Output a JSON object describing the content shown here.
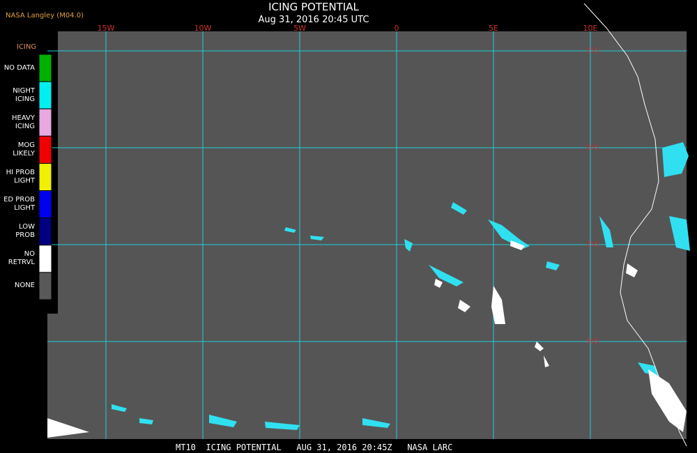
{
  "header": {
    "source": "NASA Langley (M04.0)",
    "title": "ICING POTENTIAL",
    "date": "Aug 31, 2016 20:45 UTC"
  },
  "map": {
    "longitudes": [
      "15W",
      "10W",
      "5W",
      "0",
      "5E",
      "10E"
    ],
    "latitudes": [
      "15S",
      "20S",
      "25S",
      "30S"
    ]
  },
  "legend": {
    "title": "ICING",
    "items": [
      {
        "label": "NO DATA",
        "color": "#00b000"
      },
      {
        "label": "NIGHT\nICING",
        "color": "#00f0f0"
      },
      {
        "label": "HEAVY\nICING",
        "color": "#e8a8e0"
      },
      {
        "label": "MOG\nLIKELY",
        "color": "#f00000"
      },
      {
        "label": "HI PROB\nLIGHT",
        "color": "#f0f000"
      },
      {
        "label": "ED PROB\nLIGHT",
        "color": "#0000f0"
      },
      {
        "label": "LOW\nPROB",
        "color": "#000080"
      },
      {
        "label": "NO\nRETRVL",
        "color": "#ffffff"
      },
      {
        "label": "NONE",
        "color": "#585858"
      }
    ]
  },
  "footer": "MT10  ICING POTENTIAL   AUG 31, 2016 20:45Z   NASA LARC"
}
